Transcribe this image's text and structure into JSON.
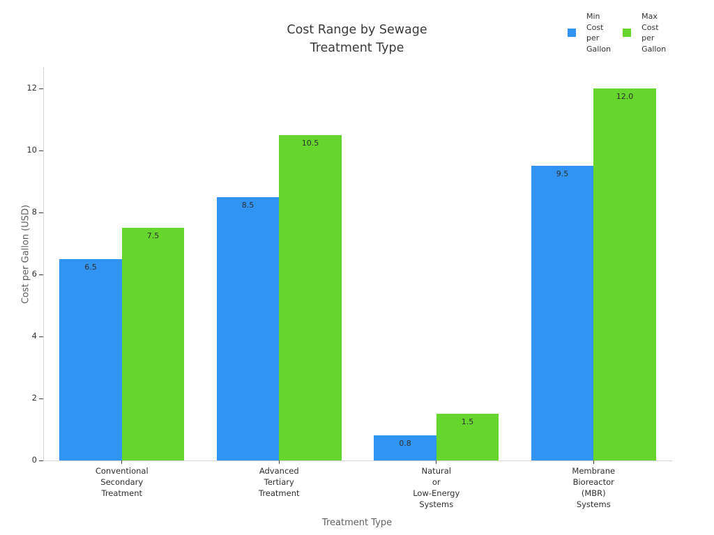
{
  "chart_data": {
    "type": "bar",
    "title": "Cost Range by Sewage\nTreatment Type",
    "xlabel": "Treatment Type",
    "ylabel": "Cost per Gallon (USD)",
    "categories": [
      "Conventional\nSecondary\nTreatment",
      "Advanced\nTertiary\nTreatment",
      "Natural\nor\nLow-Energy\nSystems",
      "Membrane\nBioreactor\n(MBR)\nSystems"
    ],
    "series": [
      {
        "name": "Min Cost per Gallon",
        "legend_lines": "Min\nCost\nper\nGallon",
        "color": "#3194f2",
        "values": [
          6.5,
          8.5,
          0.8,
          9.5
        ],
        "labels": [
          "6.5",
          "8.5",
          "0.8",
          "9.5"
        ]
      },
      {
        "name": "Max Cost per Gallon",
        "legend_lines": "Max\nCost\nper\nGallon",
        "color": "#66d62e",
        "values": [
          7.5,
          10.5,
          1.5,
          12.0
        ],
        "labels": [
          "7.5",
          "10.5",
          "1.5",
          "12.0"
        ]
      }
    ],
    "yticks": [
      0,
      2,
      4,
      6,
      8,
      10,
      12
    ],
    "ylim": [
      0,
      12.67
    ],
    "grid": false,
    "legend_position": "top-right",
    "background": "#ffffff"
  }
}
